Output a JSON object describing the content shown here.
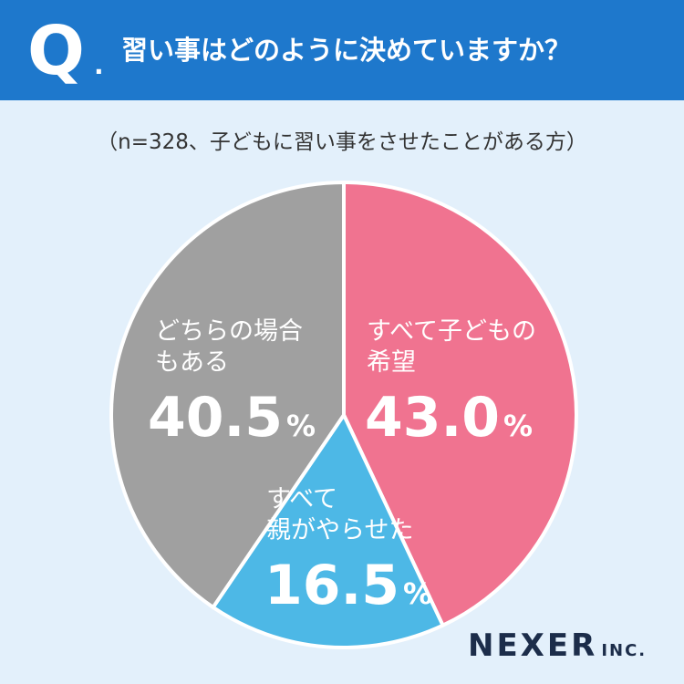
{
  "header": {
    "q_mark": "Q",
    "q_dot": ".",
    "question": "習い事はどのように決めていますか？"
  },
  "subtitle": "（n=328、子どもに習い事をさせたことがある方）",
  "brand": {
    "name": "NEXER",
    "suffix": "INC."
  },
  "colors": {
    "header_bg": "#1e78cc",
    "page_bg": "#e3f0fb",
    "slice_pink": "#f07390",
    "slice_blue": "#4db8e6",
    "slice_gray": "#a0a0a0",
    "brand_text": "#1c2d4a"
  },
  "chart_data": {
    "type": "pie",
    "slices": [
      {
        "label_lines": [
          "すべて子どもの",
          "希望"
        ],
        "value": 43.0,
        "value_text": "43.0",
        "color": "#f07390"
      },
      {
        "label_lines": [
          "すべて",
          "親がやらせた"
        ],
        "value": 16.5,
        "value_text": "16.5",
        "color": "#4db8e6"
      },
      {
        "label_lines": [
          "どちらの場合",
          "もある"
        ],
        "value": 40.5,
        "value_text": "40.5",
        "color": "#a0a0a0"
      }
    ],
    "unit": "%",
    "start": "12 o'clock",
    "direction": "clockwise",
    "legend": "none"
  }
}
